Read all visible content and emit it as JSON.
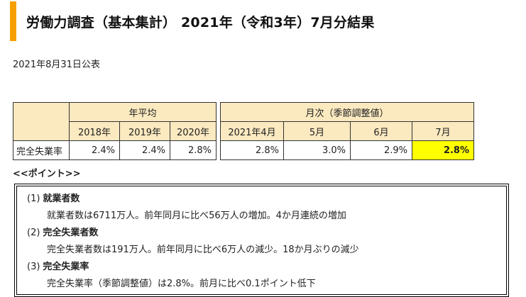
{
  "title": "労働力調査（基本集計） 2021年（令和3年）7月分結果",
  "publish_date": "2021年8月31日公表",
  "table": {
    "group_annual": "年平均",
    "group_monthly": "月次（季節調整値）",
    "years": [
      "2018年",
      "2019年",
      "2020年"
    ],
    "months": [
      "2021年4月",
      "5月",
      "6月",
      "7月"
    ],
    "row_label": "完全失業率",
    "annual_values": [
      "2.4%",
      "2.4%",
      "2.8%"
    ],
    "monthly_values": [
      "2.8%",
      "3.0%",
      "2.9%",
      "2.8%"
    ]
  },
  "points_heading": "<<ポイント>>",
  "points": [
    {
      "num": "(1)",
      "heading": "就業者数",
      "text": "就業者数は6711万人。前年同月に比べ56万人の増加。4か月連続の増加"
    },
    {
      "num": "(2)",
      "heading": "完全失業者数",
      "text": "完全失業者数は191万人。前年同月に比べ6万人の減少。18か月ぶりの減少"
    },
    {
      "num": "(3)",
      "heading": "完全失業率",
      "text": "完全失業率（季節調整値）は2.8%。前月に比べ0.1ポイント低下"
    }
  ],
  "colors": {
    "accent": "#f5a000",
    "header_bg": "#fbe9c0",
    "highlight": "#ffff00"
  }
}
